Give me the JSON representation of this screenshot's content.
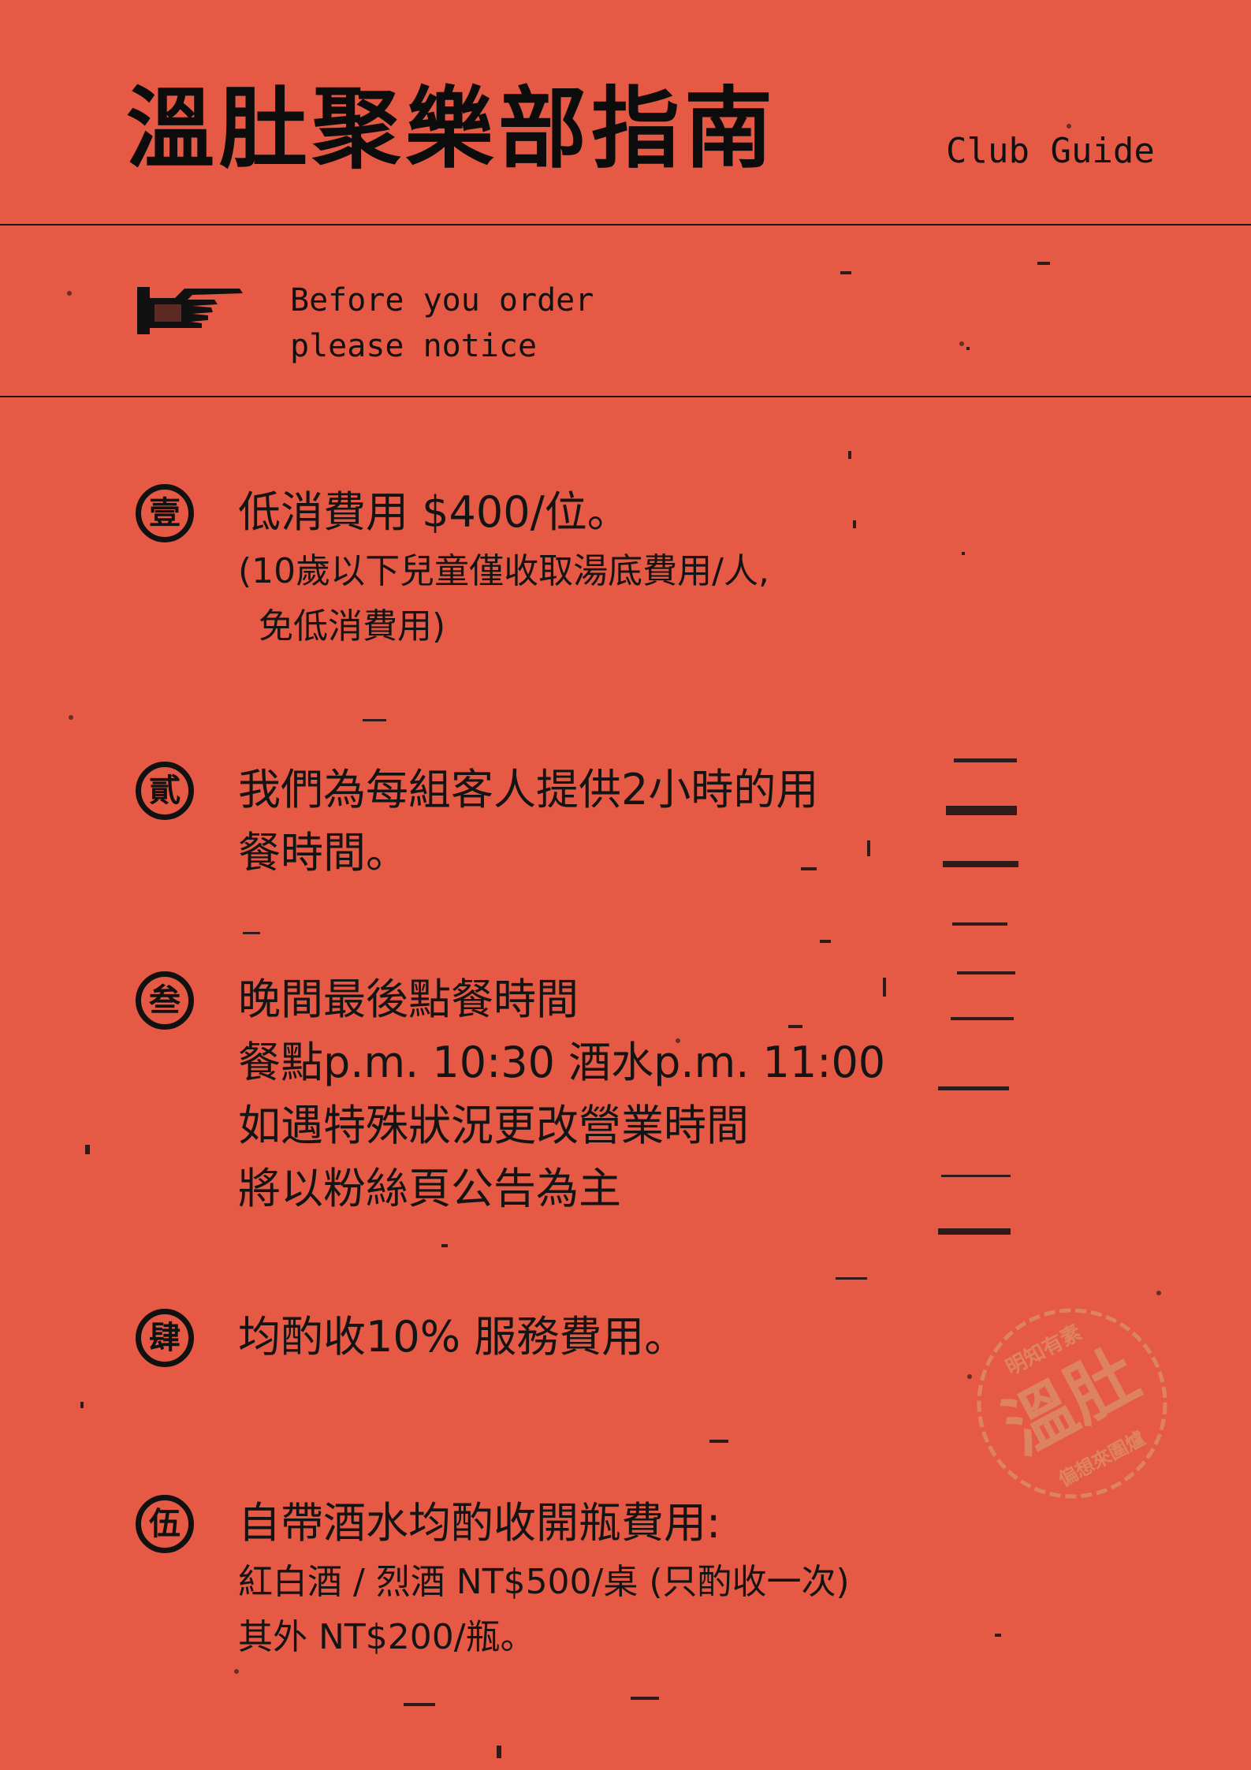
{
  "header": {
    "title": "溫肚聚樂部指南",
    "subtitle": "Club Guide"
  },
  "notice": {
    "icon": "pointing-hand-icon",
    "line1": "Before you order",
    "line2": "please notice"
  },
  "items": [
    {
      "badge": "壹",
      "lines": [
        "低消費用 $400/位。",
        "(10歲以下兒童僅收取湯底費用/人,",
        "免低消費用)"
      ]
    },
    {
      "badge": "貳",
      "lines": [
        "我們為每組客人提供2小時的用",
        "餐時間。"
      ]
    },
    {
      "badge": "叁",
      "lines": [
        "晚間最後點餐時間",
        "餐點p.m. 10:30  酒水p.m. 11:00",
        "如遇特殊狀況更改營業時間",
        "將以粉絲頁公告為主"
      ]
    },
    {
      "badge": "肆",
      "lines": [
        "均酌收10% 服務費用。"
      ]
    },
    {
      "badge": "伍",
      "lines": [
        "自帶酒水均酌收開瓶費用:",
        "紅白酒 / 烈酒 NT$500/桌 (只酌收一次)",
        "其外 NT$200/瓶。"
      ]
    }
  ],
  "stamp": {
    "main": "溫肚",
    "top_arc": "明知有素",
    "bottom_arc": "偏想來圍爐"
  },
  "colors": {
    "background": "#e65a45",
    "ink": "#111111",
    "stamp": "#d9a67a"
  }
}
